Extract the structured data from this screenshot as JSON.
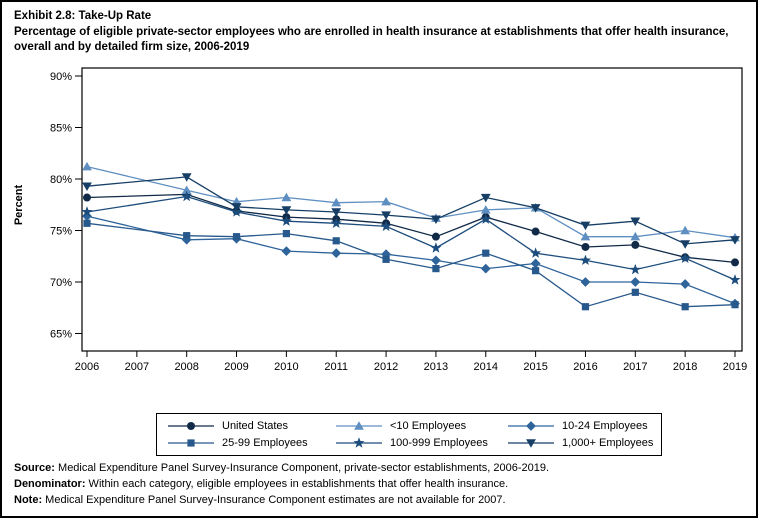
{
  "title": "Exhibit 2.8: Take-Up Rate",
  "subtitle": "Percentage of eligible private-sector employees who are enrolled in health insurance at establishments that offer health insurance, overall and by detailed firm size, 2006-2019",
  "footer": {
    "source_label": "Source:",
    "source_text": " Medical Expenditure Panel Survey-Insurance Component, private-sector establishments, 2006-2019.",
    "denominator_label": "Denominator:",
    "denominator_text": " Within each category, eligible employees in establishments that offer health insurance.",
    "note_label": "Note:",
    "note_text": " Medical Expenditure Panel Survey-Insurance Component estimates are not available for 2007."
  },
  "chart_data": {
    "type": "line",
    "title": "",
    "xlabel": "",
    "ylabel": "Percent",
    "ylim": [
      65,
      90
    ],
    "yticks": [
      65,
      70,
      75,
      80,
      85,
      90
    ],
    "ytick_suffix": "%",
    "grid": false,
    "legend_position": "bottom",
    "note": "No data for 2007 (values are null); lines connect 2006 directly to 2008",
    "x": [
      2006,
      2007,
      2008,
      2009,
      2010,
      2011,
      2012,
      2013,
      2014,
      2015,
      2016,
      2017,
      2018,
      2019
    ],
    "series": [
      {
        "name": "United States",
        "marker": "circle",
        "color": "#112a47",
        "values": [
          78.2,
          null,
          78.5,
          76.9,
          76.3,
          76.1,
          75.7,
          74.4,
          76.3,
          74.9,
          73.4,
          73.6,
          72.4,
          71.9
        ]
      },
      {
        "name": "<10 Employees",
        "marker": "triangle-up",
        "color": "#5f8fc1",
        "values": [
          81.2,
          null,
          78.9,
          77.8,
          78.2,
          77.7,
          77.8,
          76.2,
          77.0,
          77.2,
          74.4,
          74.4,
          75.0,
          74.3
        ]
      },
      {
        "name": "10-24 Employees",
        "marker": "diamond",
        "color": "#2f649b",
        "values": [
          76.4,
          null,
          74.1,
          74.2,
          73.0,
          72.8,
          72.7,
          72.1,
          71.3,
          71.8,
          70.0,
          70.0,
          69.8,
          67.9
        ]
      },
      {
        "name": "25-99 Employees",
        "marker": "square",
        "color": "#28598c",
        "values": [
          75.7,
          null,
          74.5,
          74.4,
          74.7,
          74.0,
          72.2,
          71.3,
          72.8,
          71.1,
          67.6,
          69.0,
          67.6,
          67.8
        ]
      },
      {
        "name": "100-999 Employees",
        "marker": "star",
        "color": "#1d4d7c",
        "values": [
          76.8,
          null,
          78.3,
          76.8,
          75.9,
          75.7,
          75.4,
          73.3,
          76.1,
          72.8,
          72.1,
          71.2,
          72.3,
          70.2
        ]
      },
      {
        "name": "1,000+ Employees",
        "marker": "triangle-down",
        "color": "#173f66",
        "values": [
          79.3,
          null,
          80.2,
          77.3,
          77.0,
          76.8,
          76.5,
          76.1,
          78.2,
          77.2,
          75.5,
          75.9,
          73.7,
          74.1
        ]
      }
    ],
    "legend_order": [
      [
        "United States",
        "<10 Employees",
        "10-24 Employees"
      ],
      [
        "25-99 Employees",
        "100-999 Employees",
        "1,000+ Employees"
      ]
    ]
  }
}
